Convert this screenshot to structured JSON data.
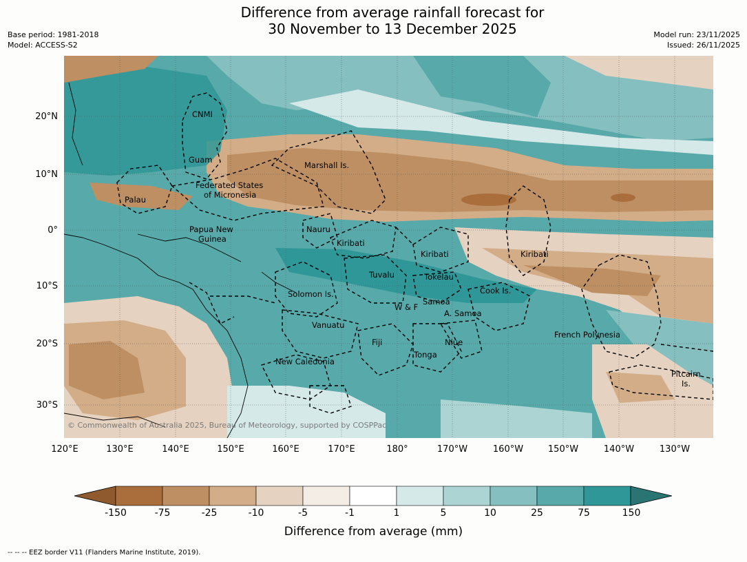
{
  "title": {
    "line1": "Difference from average rainfall forecast for",
    "line2": "30 November to 13 December 2025"
  },
  "meta_left": {
    "base_period": "Base period: 1981-2018",
    "model": "Model: ACCESS-S2"
  },
  "meta_right": {
    "model_run": "Model run: 23/11/2025",
    "issued": "Issued: 26/11/2025"
  },
  "map": {
    "lat_labels": [
      "20°N",
      "10°N",
      "0°",
      "10°S",
      "20°S",
      "30°S"
    ],
    "lon_labels": [
      "120°E",
      "130°E",
      "140°E",
      "150°E",
      "160°E",
      "170°E",
      "180°",
      "170°W",
      "160°W",
      "150°W",
      "140°W",
      "130°W"
    ],
    "copyright": "© Commonwealth of Australia 2025, Bureau of Meteorology, supported by COSPPac",
    "regions": [
      "CNMI",
      "Guam",
      "Marshall Is.",
      "Federated States",
      "of Micronesia",
      "Palau",
      "Papua New",
      "Guinea",
      "Nauru",
      "Kiribati",
      "Kiribati",
      "Kiribati",
      "Tuvalu",
      "Tokelau",
      "Cook Is.",
      "Solomon Is.",
      "W & F",
      "Samoa",
      "A. Samoa",
      "Vanuatu",
      "Fiji",
      "Niue",
      "Tonga",
      "French Polynesia",
      "New Caledonia",
      "Pitcairn",
      "Is."
    ]
  },
  "colorbar": {
    "title": "Difference from average (mm)",
    "ticks": [
      "-150",
      "-75",
      "-25",
      "-10",
      "-5",
      "-1",
      "1",
      "5",
      "10",
      "25",
      "75",
      "150"
    ],
    "colors": [
      "#a96e3b",
      "#bd8f62",
      "#d3ad88",
      "#e6d2c0",
      "#f3ede6",
      "#ffffff",
      "#d5e9e8",
      "#acd4d3",
      "#85bfbf",
      "#58a9a9",
      "#2f9797"
    ],
    "under_color": "#8f5a2e",
    "over_color": "#2a7574"
  },
  "footer": "--  --  -- EEZ border V11 (Flanders Marine Institute, 2019)."
}
